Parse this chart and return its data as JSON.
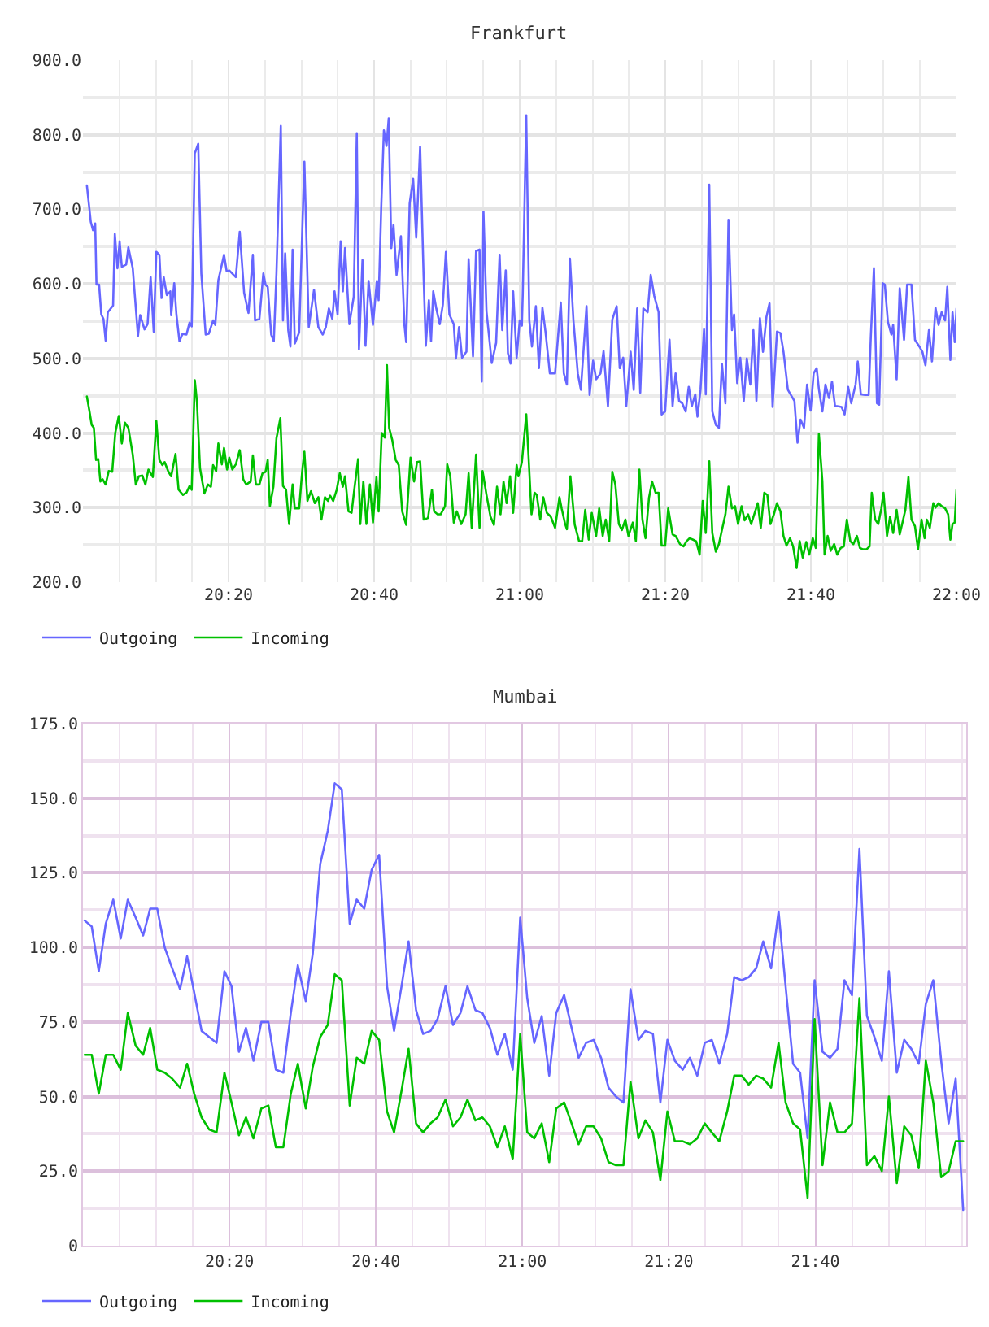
{
  "chart_data": [
    {
      "type": "line",
      "title": "Frankfurt",
      "xlim": [
        20,
        22
      ],
      "xticks": [
        {
          "value": 20.0833,
          "label": null
        },
        {
          "value": 20.1667,
          "label": null
        },
        {
          "value": 20.25,
          "label": null
        },
        {
          "value": 20.3333,
          "label": "20:20"
        },
        {
          "value": 20.4167,
          "label": null
        },
        {
          "value": 20.5,
          "label": null
        },
        {
          "value": 20.5833,
          "label": null
        },
        {
          "value": 20.6667,
          "label": "20:40"
        },
        {
          "value": 20.75,
          "label": null
        },
        {
          "value": 20.8333,
          "label": null
        },
        {
          "value": 20.9167,
          "label": null
        },
        {
          "value": 21,
          "label": "21:00"
        },
        {
          "value": 21.0833,
          "label": null
        },
        {
          "value": 21.1667,
          "label": null
        },
        {
          "value": 21.25,
          "label": null
        },
        {
          "value": 21.3333,
          "label": "21:20"
        },
        {
          "value": 21.4167,
          "label": null
        },
        {
          "value": 21.5,
          "label": null
        },
        {
          "value": 21.5833,
          "label": null
        },
        {
          "value": 21.6667,
          "label": "21:40"
        },
        {
          "value": 21.75,
          "label": null
        },
        {
          "value": 21.8333,
          "label": null
        },
        {
          "value": 21.9167,
          "label": null
        },
        {
          "value": 22,
          "label": "22:00"
        }
      ],
      "ylim": [
        200,
        900
      ],
      "yticks": [
        {
          "value": 200,
          "label": "200.0"
        },
        {
          "value": 250,
          "label": null
        },
        {
          "value": 300,
          "label": "300.0"
        },
        {
          "value": 350,
          "label": null
        },
        {
          "value": 400,
          "label": "400.0"
        },
        {
          "value": 450,
          "label": null
        },
        {
          "value": 500,
          "label": "500.0"
        },
        {
          "value": 550,
          "label": null
        },
        {
          "value": 600,
          "label": "600.0"
        },
        {
          "value": 650,
          "label": null
        },
        {
          "value": 700,
          "label": "700.0"
        },
        {
          "value": 750,
          "label": null
        },
        {
          "value": 800,
          "label": "800.0"
        },
        {
          "value": 850,
          "label": null
        },
        {
          "value": 900,
          "label": "900.0"
        }
      ],
      "grid": true,
      "legend": "bottom left",
      "series": [
        {
          "name": "Outgoing",
          "color": "#6666ff",
          "x": [
            20.009,
            20.018,
            20.023,
            20.028,
            20.031,
            20.037,
            20.042,
            20.047,
            20.052,
            20.057,
            20.069,
            20.073,
            20.079,
            20.084,
            20.089,
            20.099,
            20.104,
            20.114,
            20.126,
            20.131,
            20.141,
            20.148,
            20.155,
            20.162,
            20.168,
            20.175,
            20.18,
            20.185,
            20.192,
            20.2,
            20.202,
            20.209,
            20.214,
            20.221,
            20.228,
            20.237,
            20.244,
            20.249,
            20.256,
            20.264,
            20.271,
            20.281,
            20.288,
            20.298,
            20.303,
            20.31,
            20.323,
            20.329,
            20.335,
            20.35,
            20.359,
            20.369,
            20.379,
            20.389,
            20.394,
            20.404,
            20.413,
            20.418,
            20.423,
            20.431,
            20.437,
            20.443,
            20.453,
            20.458,
            20.463,
            20.47,
            20.475,
            20.48,
            20.485,
            20.495,
            20.507,
            20.517,
            20.529,
            20.539,
            20.549,
            20.556,
            20.563,
            20.571,
            20.576,
            20.583,
            20.59,
            20.595,
            20.6,
            20.61,
            20.62,
            20.627,
            20.632,
            20.64,
            20.647,
            20.654,
            20.664,
            20.673,
            20.677,
            20.683,
            20.689,
            20.695,
            20.7,
            20.706,
            20.711,
            20.718,
            20.728,
            20.736,
            20.74,
            20.748,
            20.756,
            20.763,
            20.772,
            20.78,
            20.785,
            20.792,
            20.797,
            20.802,
            20.809,
            20.817,
            20.824,
            20.831,
            20.839,
            20.849,
            20.854,
            20.861,
            20.868,
            20.878,
            20.883,
            20.893,
            20.9,
            20.908,
            20.913,
            20.917,
            20.924,
            20.936,
            20.946,
            20.954,
            20.96,
            20.968,
            20.973,
            20.979,
            20.985,
            20.993,
            21,
            21.005,
            21.007,
            21.015,
            21.022,
            21.028,
            21.037,
            21.044,
            21.052,
            21.059,
            21.069,
            21.081,
            21.094,
            21.101,
            21.108,
            21.115,
            21.123,
            21.133,
            21.14,
            21.153,
            21.16,
            21.168,
            21.175,
            21.185,
            21.192,
            21.202,
            21.212,
            21.222,
            21.229,
            21.237,
            21.244,
            21.254,
            21.261,
            21.269,
            21.276,
            21.283,
            21.293,
            21.3,
            21.308,
            21.318,
            21.325,
            21.333,
            21.343,
            21.35,
            21.357,
            21.365,
            21.372,
            21.38,
            21.387,
            21.394,
            21.402,
            21.407,
            21.414,
            21.422,
            21.426,
            21.434,
            21.441,
            21.449,
            21.456,
            21.463,
            21.471,
            21.478,
            21.486,
            21.491,
            21.498,
            21.505,
            21.513,
            21.52,
            21.528,
            21.535,
            21.542,
            21.55,
            21.557,
            21.565,
            21.572,
            21.579,
            21.589,
            21.597,
            21.604,
            21.614,
            21.621,
            21.629,
            21.636,
            21.643,
            21.651,
            21.658,
            21.666,
            21.673,
            21.68,
            21.685,
            21.693,
            21.7,
            21.708,
            21.715,
            21.722,
            21.727,
            21.737,
            21.744,
            21.752,
            21.759,
            21.769,
            21.774,
            21.781,
            21.791,
            21.799,
            21.804,
            21.811,
            21.818,
            21.823,
            21.831,
            21.836,
            21.843,
            21.851,
            21.855,
            21.863,
            21.87,
            21.88,
            21.887,
            21.897,
            21.905,
            21.915,
            21.922,
            21.929,
            21.937,
            21.944,
            21.952,
            21.959,
            21.966,
            21.974,
            21.979,
            21.986,
            21.991,
            21.996,
            22
          ],
          "values": [
            732,
            683,
            672,
            681,
            599,
            599,
            559,
            553,
            524,
            562,
            571,
            667,
            621,
            657,
            623,
            626,
            649,
            621,
            530,
            558,
            539,
            546,
            609,
            536,
            643,
            639,
            581,
            609,
            585,
            590,
            558,
            601,
            559,
            523,
            533,
            532,
            548,
            543,
            775,
            788,
            614,
            532,
            533,
            551,
            545,
            605,
            639,
            617,
            618,
            609,
            670,
            588,
            561,
            639,
            551,
            553,
            614,
            599,
            596,
            532,
            523,
            614,
            812,
            551,
            641,
            538,
            516,
            646,
            520,
            535,
            764,
            542,
            592,
            542,
            532,
            542,
            567,
            553,
            590,
            559,
            657,
            590,
            648,
            546,
            583,
            802,
            512,
            632,
            517,
            604,
            545,
            604,
            578,
            704,
            806,
            785,
            822,
            648,
            679,
            612,
            664,
            545,
            522,
            708,
            741,
            662,
            784,
            609,
            517,
            578,
            523,
            590,
            567,
            546,
            572,
            643,
            559,
            546,
            500,
            542,
            501,
            509,
            633,
            503,
            644,
            646,
            469,
            697,
            563,
            494,
            521,
            639,
            538,
            618,
            507,
            493,
            590,
            501,
            551,
            544,
            587,
            826,
            551,
            516,
            570,
            487,
            568,
            536,
            480,
            480,
            575,
            480,
            465,
            634,
            551,
            480,
            458,
            570,
            451,
            497,
            472,
            480,
            510,
            436,
            552,
            570,
            487,
            501,
            436,
            509,
            458,
            567,
            454,
            567,
            562,
            612,
            584,
            562,
            425,
            429,
            525,
            436,
            480,
            443,
            440,
            429,
            462,
            436,
            452,
            422,
            458,
            539,
            452,
            733,
            429,
            411,
            407,
            493,
            440,
            686,
            538,
            559,
            467,
            501,
            443,
            500,
            465,
            538,
            443,
            554,
            509,
            556,
            574,
            435,
            536,
            534,
            509,
            458,
            451,
            443,
            387,
            418,
            407,
            465,
            430,
            480,
            487,
            459,
            429,
            465,
            447,
            469,
            436,
            436,
            435,
            425,
            462,
            440,
            465,
            496,
            452,
            451,
            451,
            530,
            621,
            440,
            438,
            601,
            599,
            549,
            532,
            545,
            472,
            594,
            525,
            599,
            599,
            525,
            516,
            509,
            491,
            538,
            496,
            568,
            545,
            562,
            551,
            596,
            498,
            562,
            522,
            567
          ]
        },
        {
          "name": "Incoming",
          "color": "#00c000",
          "x": [
            20.009,
            20.015,
            20.02,
            20.025,
            20.03,
            20.035,
            20.04,
            20.045,
            20.052,
            20.059,
            20.067,
            20.074,
            20.082,
            20.089,
            20.096,
            20.104,
            20.114,
            20.121,
            20.128,
            20.136,
            20.143,
            20.15,
            20.16,
            20.168,
            20.175,
            20.182,
            20.187,
            20.195,
            20.202,
            20.212,
            20.219,
            20.229,
            20.237,
            20.244,
            20.249,
            20.256,
            20.261,
            20.268,
            20.278,
            20.286,
            20.293,
            20.298,
            20.305,
            20.31,
            20.318,
            20.323,
            20.33,
            20.335,
            20.342,
            20.35,
            20.359,
            20.367,
            20.374,
            20.384,
            20.389,
            20.396,
            20.404,
            20.411,
            20.418,
            20.423,
            20.428,
            20.436,
            20.443,
            20.452,
            20.458,
            20.465,
            20.472,
            20.48,
            20.485,
            20.495,
            20.502,
            20.507,
            20.514,
            20.522,
            20.531,
            20.539,
            20.546,
            20.554,
            20.561,
            20.566,
            20.573,
            20.581,
            20.588,
            20.595,
            20.6,
            20.608,
            20.615,
            20.622,
            20.63,
            20.635,
            20.642,
            20.649,
            20.657,
            20.664,
            20.672,
            20.677,
            20.684,
            20.691,
            20.696,
            20.701,
            20.708,
            20.716,
            20.723,
            20.731,
            20.74,
            20.75,
            20.758,
            20.765,
            20.772,
            20.78,
            20.79,
            20.799,
            20.804,
            20.812,
            20.819,
            20.829,
            20.834,
            20.841,
            20.849,
            20.856,
            20.866,
            20.876,
            20.883,
            20.89,
            20.9,
            20.908,
            20.915,
            20.924,
            20.933,
            20.941,
            20.948,
            20.956,
            20.963,
            20.97,
            20.978,
            20.985,
            20.993,
            20.997,
            21.005,
            21.015,
            21.02,
            21.027,
            21.034,
            21.039,
            21.047,
            21.054,
            21.062,
            21.071,
            21.081,
            21.091,
            21.096,
            21.104,
            21.108,
            21.116,
            21.126,
            21.136,
            21.143,
            21.15,
            21.158,
            21.165,
            21.175,
            21.182,
            21.19,
            21.197,
            21.205,
            21.212,
            21.219,
            21.227,
            21.234,
            21.242,
            21.249,
            21.259,
            21.266,
            21.274,
            21.281,
            21.288,
            21.296,
            21.303,
            21.311,
            21.318,
            21.325,
            21.333,
            21.34,
            21.35,
            21.357,
            21.367,
            21.375,
            21.382,
            21.389,
            21.397,
            21.404,
            21.412,
            21.419,
            21.426,
            21.434,
            21.441,
            21.449,
            21.456,
            21.463,
            21.471,
            21.478,
            21.486,
            21.493,
            21.5,
            21.508,
            21.515,
            21.523,
            21.53,
            21.537,
            21.545,
            21.552,
            21.56,
            21.567,
            21.574,
            21.582,
            21.589,
            21.597,
            21.604,
            21.611,
            21.619,
            21.626,
            21.634,
            21.641,
            21.648,
            21.656,
            21.663,
            21.671,
            21.678,
            21.685,
            21.693,
            21.698,
            21.705,
            21.712,
            21.72,
            21.727,
            21.735,
            21.742,
            21.749,
            21.757,
            21.764,
            21.772,
            21.779,
            21.786,
            21.794,
            21.801,
            21.806,
            21.814,
            21.821,
            21.828,
            21.833,
            21.841,
            21.848,
            21.855,
            21.863,
            21.87,
            21.878,
            21.883,
            21.89,
            21.897,
            21.905,
            21.912,
            21.92,
            21.927,
            21.932,
            21.939,
            21.947,
            21.952,
            21.959,
            21.966,
            21.974,
            21.981,
            21.986,
            21.991,
            21.996,
            22
          ],
          "values": [
            449,
            429,
            411,
            407,
            364,
            365,
            335,
            338,
            331,
            349,
            348,
            400,
            423,
            386,
            414,
            407,
            371,
            331,
            342,
            343,
            331,
            351,
            341,
            416,
            364,
            357,
            361,
            349,
            342,
            372,
            324,
            317,
            320,
            329,
            324,
            471,
            442,
            353,
            319,
            331,
            328,
            357,
            349,
            386,
            358,
            380,
            351,
            367,
            351,
            358,
            377,
            338,
            331,
            335,
            370,
            331,
            331,
            346,
            348,
            364,
            302,
            328,
            393,
            420,
            329,
            324,
            278,
            331,
            299,
            299,
            349,
            375,
            309,
            322,
            306,
            314,
            284,
            314,
            309,
            316,
            309,
            324,
            346,
            328,
            342,
            295,
            293,
            328,
            365,
            278,
            335,
            278,
            331,
            280,
            341,
            295,
            400,
            394,
            491,
            407,
            391,
            364,
            357,
            295,
            277,
            367,
            335,
            361,
            362,
            284,
            286,
            324,
            295,
            291,
            291,
            302,
            358,
            342,
            280,
            295,
            278,
            291,
            346,
            273,
            371,
            273,
            349,
            317,
            288,
            277,
            328,
            291,
            335,
            306,
            342,
            293,
            357,
            342,
            361,
            425,
            371,
            291,
            320,
            317,
            284,
            314,
            293,
            288,
            273,
            314,
            299,
            278,
            271,
            342,
            277,
            255,
            255,
            297,
            257,
            293,
            262,
            299,
            262,
            284,
            255,
            348,
            331,
            278,
            270,
            284,
            262,
            280,
            255,
            351,
            284,
            259,
            313,
            335,
            320,
            320,
            249,
            249,
            299,
            264,
            262,
            251,
            248,
            255,
            259,
            257,
            255,
            237,
            309,
            266,
            362,
            266,
            241,
            251,
            270,
            291,
            328,
            299,
            302,
            278,
            302,
            283,
            291,
            278,
            291,
            306,
            273,
            320,
            317,
            278,
            291,
            306,
            295,
            262,
            249,
            259,
            248,
            219,
            255,
            233,
            254,
            237,
            259,
            246,
            399,
            335,
            237,
            262,
            242,
            251,
            237,
            246,
            248,
            284,
            255,
            251,
            262,
            246,
            244,
            244,
            248,
            320,
            284,
            278,
            299,
            320,
            262,
            288,
            266,
            297,
            264,
            284,
            297,
            341,
            284,
            275,
            244,
            284,
            259,
            284,
            273,
            306,
            300,
            306,
            302,
            299,
            291,
            257,
            278,
            280,
            324
          ]
        }
      ]
    },
    {
      "type": "line",
      "title": "Mumbai",
      "x": [
        20.004,
        20.02,
        20.036,
        20.052,
        20.069,
        20.086,
        20.102,
        20.12,
        20.137,
        20.153,
        20.169,
        20.186,
        20.203,
        20.221,
        20.237,
        20.253,
        20.27,
        20.287,
        20.304,
        20.322,
        20.338,
        20.355,
        20.371,
        20.388,
        20.406,
        20.422,
        20.439,
        20.456,
        20.473,
        20.489,
        20.507,
        20.523,
        20.54,
        20.557,
        20.573,
        20.589,
        20.607,
        20.623,
        20.64,
        20.657,
        20.674,
        20.692,
        20.708,
        20.725,
        20.741,
        20.758,
        20.774,
        20.791,
        20.807,
        20.825,
        20.842,
        20.859,
        20.875,
        20.893,
        20.909,
        20.926,
        20.943,
        20.96,
        20.978,
        20.995,
        21.011,
        21.027,
        21.044,
        21.061,
        21.077,
        21.095,
        21.112,
        21.128,
        21.145,
        21.162,
        21.179,
        21.196,
        21.213,
        21.23,
        21.246,
        21.264,
        21.28,
        21.297,
        21.314,
        21.33,
        21.347,
        21.365,
        21.381,
        21.398,
        21.415,
        21.431,
        21.448,
        21.466,
        21.482,
        21.499,
        21.515,
        21.532,
        21.548,
        21.566,
        21.583,
        21.599,
        21.616,
        21.632,
        21.649,
        21.665,
        21.683,
        21.7,
        21.717,
        21.733,
        21.75,
        21.767,
        21.784,
        21.801,
        21.818,
        21.834,
        21.852,
        21.869,
        21.885,
        21.902,
        21.918,
        21.935,
        21.953,
        21.97,
        21.986,
        22.003
      ],
      "xlim": [
        20,
        22.01
      ],
      "xticks": [
        {
          "value": 20.0833,
          "label": null
        },
        {
          "value": 20.1667,
          "label": null
        },
        {
          "value": 20.25,
          "label": null
        },
        {
          "value": 20.3333,
          "label": "20:20"
        },
        {
          "value": 20.4167,
          "label": null
        },
        {
          "value": 20.5,
          "label": null
        },
        {
          "value": 20.5833,
          "label": null
        },
        {
          "value": 20.6667,
          "label": "20:40"
        },
        {
          "value": 20.75,
          "label": null
        },
        {
          "value": 20.8333,
          "label": null
        },
        {
          "value": 20.9167,
          "label": null
        },
        {
          "value": 21,
          "label": "21:00"
        },
        {
          "value": 21.0833,
          "label": null
        },
        {
          "value": 21.1667,
          "label": null
        },
        {
          "value": 21.25,
          "label": null
        },
        {
          "value": 21.3333,
          "label": "21:20"
        },
        {
          "value": 21.4167,
          "label": null
        },
        {
          "value": 21.5,
          "label": null
        },
        {
          "value": 21.5833,
          "label": null
        },
        {
          "value": 21.6667,
          "label": "21:40"
        },
        {
          "value": 21.75,
          "label": null
        },
        {
          "value": 21.8333,
          "label": null
        },
        {
          "value": 21.9167,
          "label": null
        },
        {
          "value": 22,
          "label": null
        }
      ],
      "ylim": [
        0,
        175
      ],
      "yticks": [
        0,
        {
          "value": 12.5,
          "label": null
        },
        {
          "value": 25,
          "label": "25.0"
        },
        {
          "value": 37.5,
          "label": null
        },
        {
          "value": 50,
          "label": "50.0"
        },
        {
          "value": 62.5,
          "label": null
        },
        {
          "value": 75,
          "label": "75.0"
        },
        {
          "value": 87.5,
          "label": null
        },
        {
          "value": 100,
          "label": "100.0"
        },
        {
          "value": 112.5,
          "label": null
        },
        {
          "value": 125,
          "label": "125.0"
        },
        {
          "value": 137.5,
          "label": null
        },
        {
          "value": 150,
          "label": "150.0"
        },
        {
          "value": 162.5,
          "label": null
        },
        {
          "value": 175,
          "label": "175.0"
        }
      ],
      "grid": true,
      "legend": "bottom left",
      "series": [
        {
          "name": "Outgoing",
          "color": "#6666ff",
          "values": [
            109,
            107,
            92,
            108,
            116,
            103,
            116,
            110,
            104,
            113,
            113,
            100,
            93,
            86,
            97,
            85,
            72,
            70,
            68,
            92,
            87,
            65,
            73,
            62,
            75,
            75,
            59,
            58,
            78,
            94,
            82,
            98,
            128,
            139,
            155,
            153,
            108,
            116,
            113,
            126,
            131,
            87,
            72,
            87,
            102,
            79,
            71,
            72,
            76,
            87,
            74,
            78,
            87,
            79,
            78,
            73,
            64,
            71,
            59,
            110,
            83,
            68,
            77,
            57,
            78,
            84,
            73,
            63,
            68,
            69,
            63,
            53,
            50,
            48,
            86,
            69,
            72,
            71,
            48,
            69,
            62,
            59,
            63,
            57,
            68,
            69,
            61,
            71,
            90,
            89,
            90,
            93,
            102,
            93,
            112,
            87,
            61,
            58,
            36,
            89,
            65,
            63,
            66,
            89,
            84,
            133,
            77,
            70,
            62,
            92,
            58,
            69,
            66,
            61,
            81,
            89,
            62,
            41,
            56,
            12
          ]
        },
        {
          "name": "Incoming",
          "color": "#00c000",
          "values": [
            64,
            64,
            51,
            64,
            64,
            59,
            78,
            67,
            64,
            73,
            59,
            58,
            56,
            53,
            61,
            51,
            43,
            39,
            38,
            58,
            48,
            37,
            43,
            36,
            46,
            47,
            33,
            33,
            51,
            61,
            46,
            60,
            70,
            74,
            91,
            89,
            47,
            63,
            61,
            72,
            69,
            45,
            38,
            52,
            66,
            41,
            38,
            41,
            43,
            49,
            40,
            43,
            49,
            42,
            43,
            40,
            33,
            40,
            29,
            71,
            38,
            36,
            41,
            28,
            46,
            48,
            41,
            34,
            40,
            40,
            36,
            28,
            27,
            27,
            55,
            36,
            42,
            38,
            22,
            45,
            35,
            35,
            34,
            36,
            41,
            38,
            35,
            45,
            57,
            57,
            54,
            57,
            56,
            53,
            68,
            48,
            41,
            39,
            16,
            76,
            27,
            48,
            38,
            38,
            41,
            83,
            27,
            30,
            25,
            50,
            21,
            40,
            37,
            26,
            62,
            48,
            23,
            25,
            35,
            35
          ]
        }
      ]
    }
  ]
}
